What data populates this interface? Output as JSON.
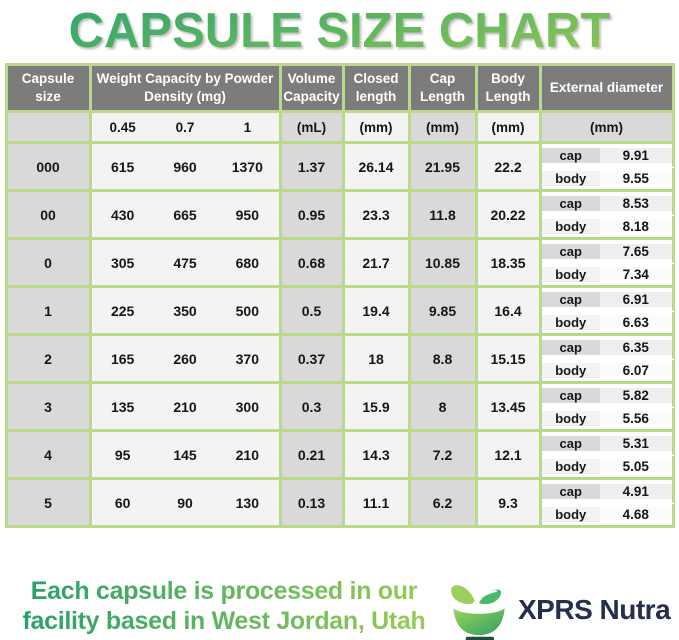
{
  "title": "CAPSULE SIZE CHART",
  "table": {
    "headers": {
      "capsule_size": "Capsule size",
      "weight": "Weight Capacity by Powder Density (mg)",
      "volume": "Volume Capacity",
      "closed": "Closed length",
      "cap": "Cap Length",
      "body": "Body Length",
      "external": "External diameter"
    },
    "units": {
      "weights": [
        "0.45",
        "0.7",
        "1"
      ],
      "volume": "(mL)",
      "closed": "(mm)",
      "cap": "(mm)",
      "body": "(mm)",
      "external": "(mm)"
    },
    "rows": [
      {
        "size": "000",
        "weights": [
          "615",
          "960",
          "1370"
        ],
        "volume": "1.37",
        "closed_length": "26.14",
        "cap_length": "21.95",
        "body_length": "22.2",
        "cap_label": "cap",
        "cap_diameter": "9.91",
        "body_label": "body",
        "body_diameter": "9.55"
      },
      {
        "size": "00",
        "weights": [
          "430",
          "665",
          "950"
        ],
        "volume": "0.95",
        "closed_length": "23.3",
        "cap_length": "11.8",
        "body_length": "20.22",
        "cap_label": "cap",
        "cap_diameter": "8.53",
        "body_label": "body",
        "body_diameter": "8.18"
      },
      {
        "size": "0",
        "weights": [
          "305",
          "475",
          "680"
        ],
        "volume": "0.68",
        "closed_length": "21.7",
        "cap_length": "10.85",
        "body_length": "18.35",
        "cap_label": "cap",
        "cap_diameter": "7.65",
        "body_label": "body",
        "body_diameter": "7.34"
      },
      {
        "size": "1",
        "weights": [
          "225",
          "350",
          "500"
        ],
        "volume": "0.5",
        "closed_length": "19.4",
        "cap_length": "9.85",
        "body_length": "16.4",
        "cap_label": "cap",
        "cap_diameter": "6.91",
        "body_label": "body",
        "body_diameter": "6.63"
      },
      {
        "size": "2",
        "weights": [
          "165",
          "260",
          "370"
        ],
        "volume": "0.37",
        "closed_length": "18",
        "cap_length": "8.8",
        "body_length": "15.15",
        "cap_label": "cap",
        "cap_diameter": "6.35",
        "body_label": "body",
        "body_diameter": "6.07"
      },
      {
        "size": "3",
        "weights": [
          "135",
          "210",
          "300"
        ],
        "volume": "0.3",
        "closed_length": "15.9",
        "cap_length": "8",
        "body_length": "13.45",
        "cap_label": "cap",
        "cap_diameter": "5.82",
        "body_label": "body",
        "body_diameter": "5.56"
      },
      {
        "size": "4",
        "weights": [
          "95",
          "145",
          "210"
        ],
        "volume": "0.21",
        "closed_length": "14.3",
        "cap_length": "7.2",
        "body_length": "12.1",
        "cap_label": "cap",
        "cap_diameter": "5.31",
        "body_label": "body",
        "body_diameter": "5.05"
      },
      {
        "size": "5",
        "weights": [
          "60",
          "90",
          "130"
        ],
        "volume": "0.13",
        "closed_length": "11.1",
        "cap_length": "6.2",
        "body_length": "9.3",
        "cap_label": "cap",
        "cap_diameter": "4.91",
        "body_label": "body",
        "body_diameter": "4.68"
      }
    ]
  },
  "footer": {
    "tagline_line1": "Each capsule is processed in our",
    "tagline_line2": "facility based in West Jordan, Utah",
    "brand": "XPRS Nutra"
  },
  "colors": {
    "border_green": "#bcd98b",
    "header_gray": "#7c7c7c",
    "cell_gray": "#d9d9d9",
    "cell_light": "#f3f3f3",
    "title_green_light": "#93c84f",
    "title_green_dark": "#2ba371",
    "brand_navy": "#252e4d",
    "leaf_green": "#8dc653",
    "bowl_green": "#3aa75f"
  },
  "chart_data": {
    "type": "table",
    "title": "CAPSULE SIZE CHART",
    "columns": [
      "Capsule size",
      "Weight Capacity at Powder Density 0.45 (mg)",
      "Weight Capacity at Powder Density 0.7 (mg)",
      "Weight Capacity at Powder Density 1 (mg)",
      "Volume Capacity (mL)",
      "Closed length (mm)",
      "Cap Length (mm)",
      "Body Length (mm)",
      "External diameter cap (mm)",
      "External diameter body (mm)"
    ],
    "rows": [
      [
        "000",
        615,
        960,
        1370,
        1.37,
        26.14,
        21.95,
        22.2,
        9.91,
        9.55
      ],
      [
        "00",
        430,
        665,
        950,
        0.95,
        23.3,
        11.8,
        20.22,
        8.53,
        8.18
      ],
      [
        "0",
        305,
        475,
        680,
        0.68,
        21.7,
        10.85,
        18.35,
        7.65,
        7.34
      ],
      [
        "1",
        225,
        350,
        500,
        0.5,
        19.4,
        9.85,
        16.4,
        6.91,
        6.63
      ],
      [
        "2",
        165,
        260,
        370,
        0.37,
        18,
        8.8,
        15.15,
        6.35,
        6.07
      ],
      [
        "3",
        135,
        210,
        300,
        0.3,
        15.9,
        8,
        13.45,
        5.82,
        5.56
      ],
      [
        "4",
        95,
        145,
        210,
        0.21,
        14.3,
        7.2,
        12.1,
        5.31,
        5.05
      ],
      [
        "5",
        60,
        90,
        130,
        0.13,
        11.1,
        6.2,
        9.3,
        4.91,
        4.68
      ]
    ]
  }
}
